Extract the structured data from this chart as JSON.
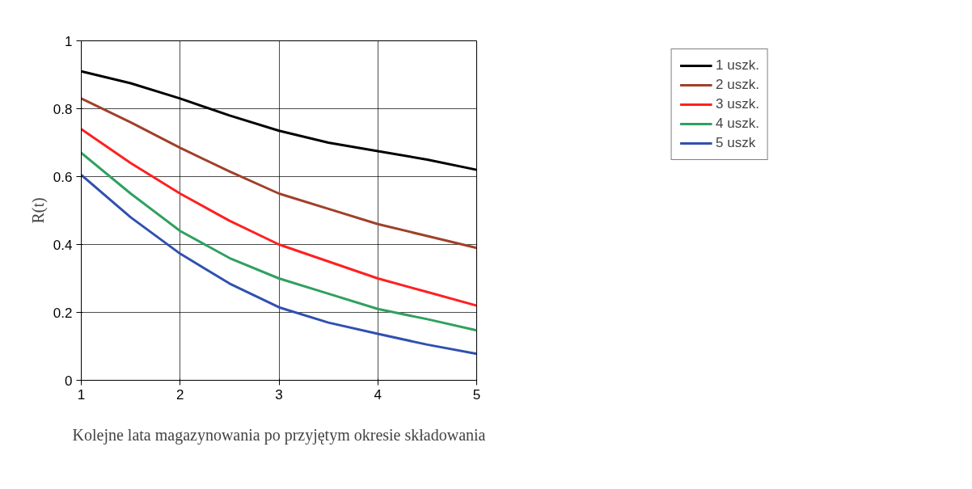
{
  "chart_data": {
    "type": "line",
    "xlabel": "Kolejne lata magazynowania po przyjętym okresie składowania",
    "ylabel": "R(t)",
    "x": [
      1,
      1.5,
      2,
      2.5,
      3,
      3.5,
      4,
      4.5,
      5
    ],
    "series": [
      {
        "name": "1 uszk.",
        "color": "#000000",
        "values": [
          0.91,
          0.875,
          0.83,
          0.78,
          0.735,
          0.7,
          0.675,
          0.65,
          0.62
        ]
      },
      {
        "name": "2 uszk.",
        "color": "#a0402a",
        "values": [
          0.83,
          0.76,
          0.685,
          0.615,
          0.55,
          0.505,
          0.46,
          0.425,
          0.39
        ]
      },
      {
        "name": "3 uszk.",
        "color": "#ff2020",
        "values": [
          0.74,
          0.64,
          0.55,
          0.47,
          0.4,
          0.35,
          0.3,
          0.26,
          0.22
        ]
      },
      {
        "name": "4 uszk.",
        "color": "#30a060",
        "values": [
          0.67,
          0.55,
          0.44,
          0.36,
          0.3,
          0.255,
          0.21,
          0.18,
          0.147
        ]
      },
      {
        "name": "5 uszk",
        "color": "#3050b0",
        "values": [
          0.605,
          0.48,
          0.373,
          0.285,
          0.215,
          0.17,
          0.137,
          0.105,
          0.078
        ]
      }
    ],
    "xlim": [
      1,
      5
    ],
    "xticks": [
      1,
      2,
      3,
      4,
      5
    ],
    "ylim": [
      0,
      1
    ],
    "yticks": [
      0,
      0.2,
      0.4,
      0.6,
      0.8,
      1
    ],
    "grid": true,
    "legend": "top right",
    "marker": "none",
    "line_style": "solid"
  }
}
